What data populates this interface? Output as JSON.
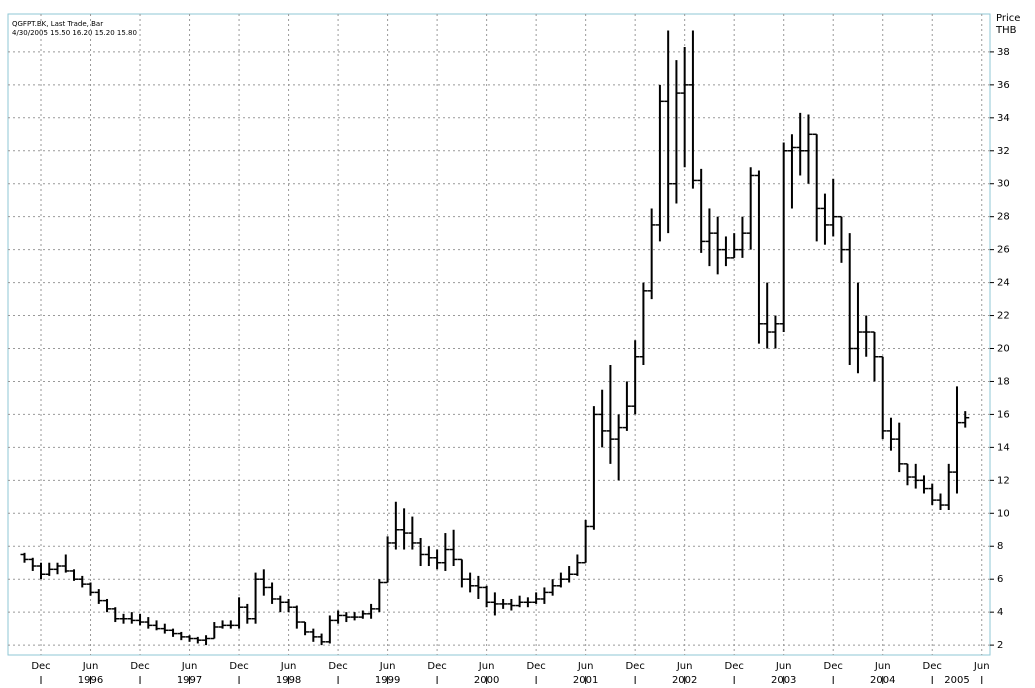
{
  "chart_data": {
    "type": "ohlc",
    "title": "QGFPT.BK, Last Trade, Bar",
    "subtitle": "4/30/2005 15.50 16.20 15.20 15.80",
    "ylabel": "Price",
    "yunit": "THB",
    "color": "#000000",
    "grid": true,
    "x": [
      "1995-10",
      "1995-11",
      "1995-12",
      "1996-01",
      "1996-02",
      "1996-03",
      "1996-04",
      "1996-05",
      "1996-06",
      "1996-07",
      "1996-08",
      "1996-09",
      "1996-10",
      "1996-11",
      "1996-12",
      "1997-01",
      "1997-02",
      "1997-03",
      "1997-04",
      "1997-05",
      "1997-06",
      "1997-07",
      "1997-08",
      "1997-09",
      "1997-10",
      "1997-11",
      "1997-12",
      "1998-01",
      "1998-02",
      "1998-03",
      "1998-04",
      "1998-05",
      "1998-06",
      "1998-07",
      "1998-08",
      "1998-09",
      "1998-10",
      "1998-11",
      "1998-12",
      "1999-01",
      "1999-02",
      "1999-03",
      "1999-04",
      "1999-05",
      "1999-06",
      "1999-07",
      "1999-08",
      "1999-09",
      "1999-10",
      "1999-11",
      "1999-12",
      "2000-01",
      "2000-02",
      "2000-03",
      "2000-04",
      "2000-05",
      "2000-06",
      "2000-07",
      "2000-08",
      "2000-09",
      "2000-10",
      "2000-11",
      "2000-12",
      "2001-01",
      "2001-02",
      "2001-03",
      "2001-04",
      "2001-05",
      "2001-06",
      "2001-07",
      "2001-08",
      "2001-09",
      "2001-10",
      "2001-11",
      "2001-12",
      "2002-01",
      "2002-02",
      "2002-03",
      "2002-04",
      "2002-05",
      "2002-06",
      "2002-07",
      "2002-08",
      "2002-09",
      "2002-10",
      "2002-11",
      "2002-12",
      "2003-01",
      "2003-02",
      "2003-03",
      "2003-04",
      "2003-05",
      "2003-06",
      "2003-07",
      "2003-08",
      "2003-09",
      "2003-10",
      "2003-11",
      "2003-12",
      "2004-01",
      "2004-02",
      "2004-03",
      "2004-04",
      "2004-05",
      "2004-06",
      "2004-07",
      "2004-08",
      "2004-09",
      "2004-10",
      "2004-11",
      "2004-12",
      "2005-01",
      "2005-02",
      "2005-03",
      "2005-04"
    ],
    "open": [
      7.5,
      7.2,
      6.8,
      6.3,
      6.6,
      6.8,
      6.5,
      6.0,
      5.7,
      5.2,
      4.7,
      4.2,
      3.6,
      3.6,
      3.5,
      3.4,
      3.2,
      3.0,
      2.9,
      2.7,
      2.5,
      2.4,
      2.3,
      2.4,
      3.1,
      3.2,
      3.2,
      4.3,
      3.6,
      6.0,
      5.5,
      4.8,
      4.6,
      4.3,
      3.4,
      2.8,
      2.5,
      2.2,
      3.5,
      3.8,
      3.7,
      3.7,
      3.9,
      4.2,
      5.8,
      8.2,
      9.0,
      8.8,
      8.2,
      7.5,
      7.3,
      7.0,
      7.8,
      7.2,
      6.0,
      5.6,
      5.5,
      4.6,
      4.5,
      4.5,
      4.4,
      4.6,
      4.6,
      4.8,
      5.2,
      5.6,
      6.0,
      6.3,
      7.0,
      9.2,
      16.0,
      15.0,
      14.5,
      15.2,
      16.5,
      19.5,
      23.5,
      27.5,
      35.0,
      30.0,
      35.5,
      36.0,
      30.2,
      26.5,
      27.0,
      26.0,
      25.5,
      26.0,
      27.0,
      30.5,
      21.5,
      21.0,
      21.5,
      32.0,
      32.2,
      32.0,
      33.0,
      28.5,
      27.5,
      28.0,
      26.0,
      20.0,
      21.0,
      21.0,
      19.5,
      15.0,
      14.5,
      13.0,
      12.2,
      12.0,
      11.5,
      10.8,
      10.5,
      12.5,
      15.5
    ],
    "high": [
      7.6,
      7.3,
      7.0,
      7.0,
      7.0,
      7.5,
      6.6,
      6.2,
      5.8,
      5.4,
      4.8,
      4.3,
      3.9,
      4.0,
      3.9,
      3.7,
      3.5,
      3.3,
      3.0,
      2.8,
      2.6,
      2.5,
      2.6,
      3.4,
      3.5,
      3.5,
      4.9,
      4.5,
      6.4,
      6.6,
      5.8,
      5.0,
      4.8,
      4.4,
      3.4,
      3.0,
      2.7,
      3.8,
      4.1,
      4.0,
      4.0,
      4.1,
      4.5,
      6.0,
      8.6,
      10.7,
      10.3,
      9.8,
      8.5,
      8.0,
      7.8,
      8.8,
      9.0,
      7.2,
      6.4,
      6.2,
      5.6,
      5.2,
      4.8,
      4.8,
      5.0,
      4.9,
      5.2,
      5.5,
      6.0,
      6.4,
      6.8,
      7.5,
      9.6,
      16.5,
      17.5,
      19.0,
      16.0,
      18.0,
      20.5,
      24.0,
      28.5,
      36.0,
      39.3,
      37.5,
      38.3,
      39.3,
      30.9,
      28.5,
      28.0,
      26.8,
      27.0,
      28.0,
      31.0,
      30.8,
      24.0,
      22.0,
      32.5,
      33.0,
      34.3,
      34.2,
      33.0,
      29.4,
      30.3,
      28.0,
      27.0,
      24.0,
      22.0,
      21.0,
      19.5,
      15.8,
      15.5,
      13.0,
      13.0,
      12.3,
      11.8,
      11.2,
      13.0,
      17.7,
      16.2
    ],
    "low": [
      7.0,
      6.5,
      6.0,
      6.2,
      6.3,
      6.4,
      5.9,
      5.5,
      5.0,
      4.5,
      4.0,
      3.4,
      3.3,
      3.3,
      3.2,
      3.0,
      2.9,
      2.7,
      2.5,
      2.3,
      2.2,
      2.1,
      2.0,
      2.4,
      3.0,
      3.0,
      3.0,
      3.3,
      3.3,
      5.0,
      4.5,
      4.0,
      4.0,
      3.0,
      2.6,
      2.2,
      2.0,
      2.1,
      3.3,
      3.4,
      3.5,
      3.6,
      3.6,
      4.0,
      5.8,
      7.8,
      7.8,
      7.8,
      6.8,
      6.8,
      6.6,
      6.5,
      6.8,
      5.5,
      5.2,
      4.8,
      4.3,
      3.8,
      4.2,
      4.1,
      4.3,
      4.3,
      4.5,
      4.5,
      5.0,
      5.5,
      5.8,
      6.2,
      7.0,
      9.0,
      14.0,
      13.0,
      12.0,
      15.0,
      16.0,
      19.0,
      23.0,
      26.5,
      27.0,
      28.8,
      31.0,
      29.7,
      25.8,
      25.0,
      24.5,
      25.0,
      25.5,
      25.5,
      26.0,
      20.3,
      20.0,
      20.0,
      21.0,
      28.5,
      30.5,
      30.0,
      26.5,
      26.3,
      26.8,
      25.2,
      19.0,
      18.5,
      19.5,
      18.0,
      14.5,
      13.8,
      12.5,
      11.7,
      11.5,
      11.2,
      10.5,
      10.2,
      10.2,
      11.2,
      15.2
    ],
    "close": [
      7.2,
      6.8,
      6.3,
      6.6,
      6.8,
      6.5,
      6.0,
      5.7,
      5.2,
      4.7,
      4.2,
      3.6,
      3.6,
      3.5,
      3.4,
      3.2,
      3.0,
      2.9,
      2.7,
      2.5,
      2.4,
      2.3,
      2.4,
      3.1,
      3.2,
      3.2,
      4.3,
      3.6,
      6.0,
      5.5,
      4.8,
      4.6,
      4.3,
      3.4,
      2.8,
      2.5,
      2.2,
      3.5,
      3.8,
      3.7,
      3.7,
      3.9,
      4.2,
      5.8,
      8.2,
      9.0,
      8.8,
      8.2,
      7.5,
      7.3,
      7.0,
      7.8,
      7.2,
      6.0,
      5.6,
      5.5,
      4.6,
      4.5,
      4.5,
      4.4,
      4.6,
      4.6,
      4.8,
      5.2,
      5.6,
      6.0,
      6.3,
      7.0,
      9.2,
      16.0,
      15.0,
      14.5,
      15.2,
      16.5,
      19.5,
      23.5,
      27.5,
      35.0,
      30.0,
      35.5,
      36.0,
      30.2,
      26.5,
      27.0,
      26.0,
      25.5,
      26.0,
      27.0,
      30.5,
      21.5,
      21.0,
      21.5,
      32.0,
      32.2,
      32.0,
      33.0,
      28.5,
      27.5,
      28.0,
      26.0,
      20.0,
      21.0,
      21.0,
      19.5,
      15.0,
      14.5,
      13.0,
      12.2,
      12.0,
      11.5,
      10.8,
      10.5,
      12.5,
      15.5,
      15.8
    ],
    "xlim": [
      "1995-08",
      "2005-07"
    ],
    "xticks": [
      {
        "value": "1995-12",
        "label": "Dec"
      },
      {
        "value": "1996-06",
        "label": "Jun"
      },
      {
        "value": "1996-12",
        "label": "Dec"
      },
      {
        "value": "1997-06",
        "label": "Jun"
      },
      {
        "value": "1997-12",
        "label": "Dec"
      },
      {
        "value": "1998-06",
        "label": "Jun"
      },
      {
        "value": "1998-12",
        "label": "Dec"
      },
      {
        "value": "1999-06",
        "label": "Jun"
      },
      {
        "value": "1999-12",
        "label": "Dec"
      },
      {
        "value": "2000-06",
        "label": "Jun"
      },
      {
        "value": "2000-12",
        "label": "Dec"
      },
      {
        "value": "2001-06",
        "label": "Jun"
      },
      {
        "value": "2001-12",
        "label": "Dec"
      },
      {
        "value": "2002-06",
        "label": "Jun"
      },
      {
        "value": "2002-12",
        "label": "Dec"
      },
      {
        "value": "2003-06",
        "label": "Jun"
      },
      {
        "value": "2003-12",
        "label": "Dec"
      },
      {
        "value": "2004-06",
        "label": "Jun"
      },
      {
        "value": "2004-12",
        "label": "Dec"
      },
      {
        "value": "2005-06",
        "label": "Jun"
      }
    ],
    "year_labels": [
      {
        "value": "1996-06",
        "label": "1996"
      },
      {
        "value": "1997-06",
        "label": "1997"
      },
      {
        "value": "1998-06",
        "label": "1998"
      },
      {
        "value": "1999-06",
        "label": "1999"
      },
      {
        "value": "2000-06",
        "label": "2000"
      },
      {
        "value": "2001-06",
        "label": "2001"
      },
      {
        "value": "2002-06",
        "label": "2002"
      },
      {
        "value": "2003-06",
        "label": "2003"
      },
      {
        "value": "2004-06",
        "label": "2004"
      },
      {
        "value": "2005-03",
        "label": "2005"
      }
    ],
    "ylim": [
      1.4,
      40.3
    ],
    "yticks": [
      2,
      4,
      6,
      8,
      10,
      12,
      14,
      16,
      18,
      20,
      22,
      24,
      26,
      28,
      30,
      32,
      34,
      36,
      38
    ]
  }
}
